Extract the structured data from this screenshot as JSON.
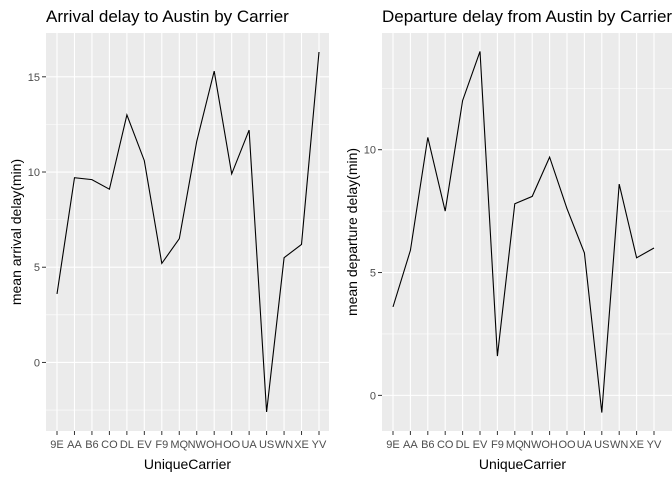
{
  "chart_data": [
    {
      "type": "line",
      "title": "Arrival delay to Austin by Carrier",
      "xlabel": "UniqueCarrier",
      "ylabel": "mean arrival delay(min)",
      "categories": [
        "9E",
        "AA",
        "B6",
        "CO",
        "DL",
        "EV",
        "F9",
        "MQ",
        "NW",
        "OH",
        "OO",
        "UA",
        "US",
        "WN",
        "XE",
        "YV"
      ],
      "values": [
        3.6,
        9.7,
        9.6,
        9.1,
        13.0,
        10.6,
        5.2,
        6.5,
        11.6,
        15.3,
        9.9,
        12.2,
        -2.6,
        5.5,
        6.2,
        16.3
      ],
      "yticks": [
        0,
        5,
        10,
        15
      ],
      "ylim": [
        -3.6,
        17.3
      ],
      "grid": true
    },
    {
      "type": "line",
      "title": "Departure delay from Austin by Carrier",
      "xlabel": "UniqueCarrier",
      "ylabel": "mean departure delay(min)",
      "categories": [
        "9E",
        "AA",
        "B6",
        "CO",
        "DL",
        "EV",
        "F9",
        "MQ",
        "NW",
        "OH",
        "OO",
        "UA",
        "US",
        "WN",
        "XE",
        "YV"
      ],
      "values": [
        3.6,
        5.9,
        10.5,
        7.5,
        12.0,
        14.0,
        1.6,
        7.8,
        8.1,
        9.7,
        7.6,
        5.8,
        -0.7,
        8.6,
        5.6,
        6.0
      ],
      "yticks": [
        0,
        5,
        10
      ],
      "ylim": [
        -1.45,
        14.75
      ],
      "grid": true
    }
  ]
}
